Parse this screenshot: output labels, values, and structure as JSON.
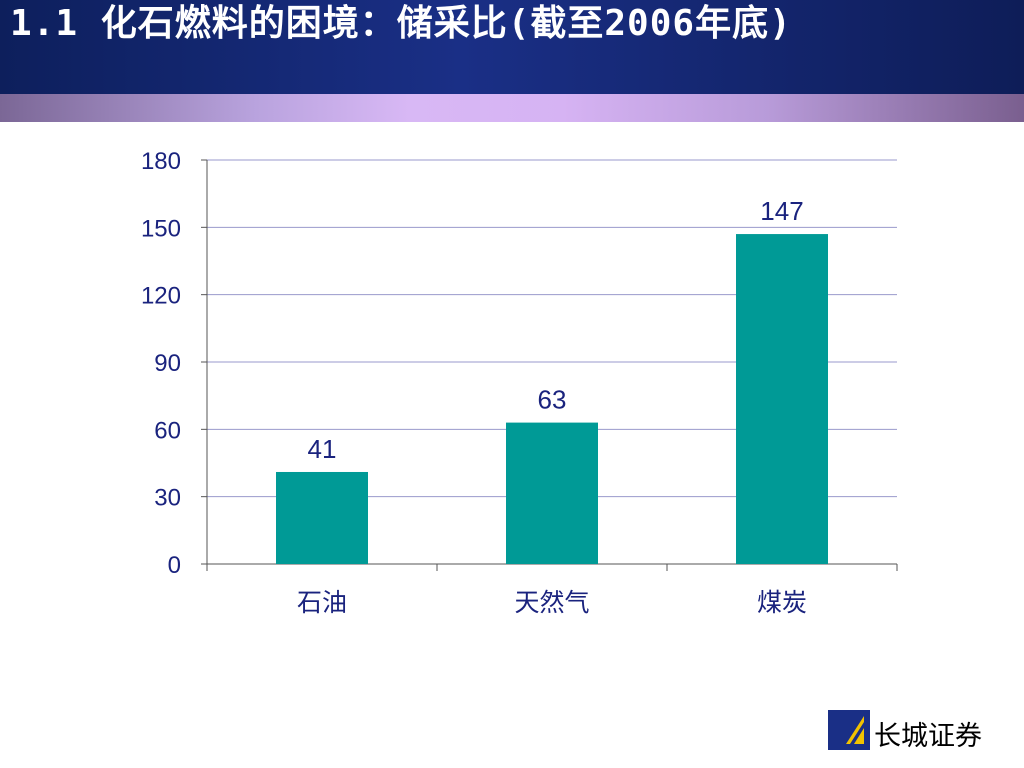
{
  "slide": {
    "title": "1.1  化石燃料的困境：储采比(截至2006年底)"
  },
  "chart_data": {
    "type": "bar",
    "title": "",
    "xlabel": "",
    "ylabel": "",
    "categories": [
      "石油",
      "天然气",
      "煤炭"
    ],
    "values": [
      41,
      63,
      147
    ],
    "data_labels": [
      "41",
      "63",
      "147"
    ],
    "ylim": [
      0,
      180
    ],
    "yticks": [
      0,
      30,
      60,
      90,
      120,
      150,
      180
    ],
    "grid": true,
    "legend": "none",
    "bar_color": "#009a96",
    "axis_text_color": "#1a237e",
    "gridline_color": "#9999cc"
  },
  "logo": {
    "text": "长城证券",
    "mark_color": "#1a2f86",
    "mark_accent": "#f2c200"
  },
  "colors": {
    "header": "#14257a",
    "band": "#c9aeea"
  }
}
